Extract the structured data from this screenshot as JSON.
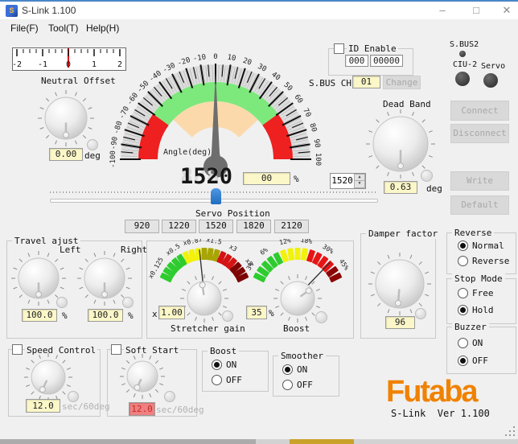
{
  "window": {
    "title": "S-Link 1.100",
    "minimize_glyph": "–",
    "maximize_glyph": "□",
    "close_glyph": "✕"
  },
  "menu": {
    "file": "File(F)",
    "tool": "Tool(T)",
    "help": "Help(H)"
  },
  "neutral_offset": {
    "label": "Neutral Offset",
    "value": "0.00",
    "unit": "deg",
    "ruler_labels": [
      "-2",
      "-1",
      "0",
      "1",
      "2"
    ]
  },
  "gauge": {
    "label": "Angle(deg)",
    "min": -100,
    "max": 100,
    "step": 10,
    "digital_value": "1520",
    "digital_ghost": "8888",
    "percent_value": "00",
    "percent_unit": "%",
    "spinner_value": "1520",
    "spinner_up_glyph": "▲",
    "spinner_down_glyph": "▼",
    "green": "#7de87c",
    "red": "#ee2020",
    "inner": "#fbd9ab"
  },
  "servo_position": {
    "label": "Servo Position",
    "presets": [
      "920",
      "1220",
      "1520",
      "1820",
      "2120"
    ]
  },
  "id_enable": {
    "label": "ID Enable",
    "checked": false,
    "field_short": "000",
    "field_long": "00000"
  },
  "sbus_ch": {
    "label": "S.BUS CH",
    "value": "01",
    "change_label": "Change"
  },
  "indicators": {
    "sbus2": "S.BUS2",
    "ciu2": "CIU-2",
    "servo": "Servo"
  },
  "dead_band": {
    "label": "Dead Band",
    "value": "0.63",
    "unit": "deg"
  },
  "actions": {
    "connect": "Connect",
    "disconnect": "Disconnect",
    "write": "Write",
    "default": "Default"
  },
  "travel_adjust": {
    "label": "Travel ajust",
    "left_label": "Left",
    "right_label": "Right",
    "left_value": "100.0",
    "right_value": "100.0",
    "unit": "%"
  },
  "stretcher": {
    "label": "Stretcher gain",
    "prefix": "x",
    "value": "1.00",
    "scale_labels": [
      "x0.125",
      "x0.5",
      "x0.87",
      "x1.5",
      "x3",
      "x8"
    ],
    "label_angles": [
      -60,
      -34,
      -12,
      10,
      31,
      53
    ],
    "needle_angle": -6,
    "segment_colors": [
      "#2ecc2e",
      "#2ecc2e",
      "#2ecc2e",
      "#2ecc2e",
      "#2ecc2e",
      "#f2f20a",
      "#f2f20a",
      "#f2f20a",
      "#a8a400",
      "#a8a400",
      "#a8a400",
      "#d41414",
      "#d41414",
      "#d41414",
      "#7e0404",
      "#7e0404",
      "#7e0404"
    ]
  },
  "boost_meter": {
    "label": "Boost",
    "value": "35",
    "unit": "%",
    "scale_labels": [
      "3%",
      "6%",
      "12%",
      "18%",
      "30%",
      "45%"
    ],
    "label_angles": [
      -58,
      -37,
      -13,
      9,
      33,
      56
    ],
    "needle_angle": 44,
    "segment_colors": [
      "#2ecc2e",
      "#2ecc2e",
      "#2ecc2e",
      "#2ecc2e",
      "#2ecc2e",
      "#f2f20a",
      "#f2f20a",
      "#f2f20a",
      "#f2f20a",
      "#e81414",
      "#e81414",
      "#e81414",
      "#e81414",
      "#8c0404",
      "#8c0404"
    ]
  },
  "damper": {
    "label": "Damper factor",
    "value": "96"
  },
  "reverse": {
    "label": "Reverse",
    "options": [
      "Normal",
      "Reverse"
    ],
    "selected": "Normal"
  },
  "stop_mode": {
    "label": "Stop Mode",
    "options": [
      "Free",
      "Hold"
    ],
    "selected": "Hold"
  },
  "buzzer": {
    "label": "Buzzer",
    "options": [
      "ON",
      "OFF"
    ],
    "selected": "OFF"
  },
  "speed_control": {
    "label": "Speed Control",
    "checked": false,
    "value": "12.0",
    "unit": "sec/60deg"
  },
  "soft_start": {
    "label": "Soft Start",
    "checked": false,
    "value": "12.0",
    "unit": "sec/60deg"
  },
  "boost_switch": {
    "label": "Boost",
    "options": [
      "ON",
      "OFF"
    ],
    "selected": "ON"
  },
  "smoother": {
    "label": "Smoother",
    "options": [
      "ON",
      "OFF"
    ],
    "selected": "ON"
  },
  "branding": {
    "logo": "Futaba",
    "version": "S-Link  Ver 1.100",
    "color": "#f08200"
  }
}
